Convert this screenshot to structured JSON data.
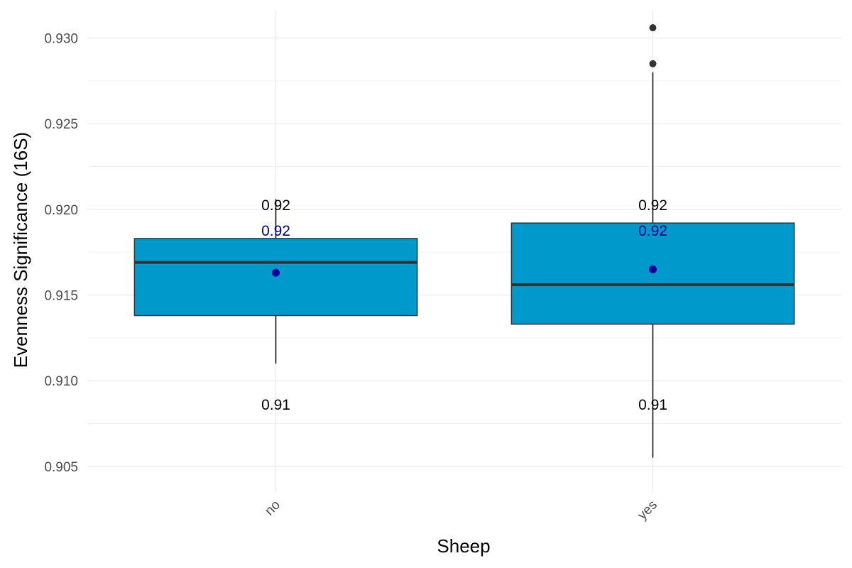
{
  "chart_data": {
    "type": "boxplot",
    "title": "",
    "xlabel": "Sheep",
    "ylabel": "Evenness Significance (16S)",
    "categories": [
      "no",
      "yes"
    ],
    "ylim": [
      0.9035,
      0.9316
    ],
    "y_ticks": [
      0.905,
      0.91,
      0.915,
      0.92,
      0.925,
      0.93
    ],
    "y_tick_labels": [
      "0.905",
      "0.910",
      "0.915",
      "0.920",
      "0.925",
      "0.930"
    ],
    "grid": true,
    "legend": "none",
    "boxes": [
      {
        "category": "no",
        "whisker_low": 0.911,
        "q1": 0.9138,
        "median": 0.9169,
        "q3": 0.9183,
        "whisker_high": 0.9206,
        "mean": 0.9163,
        "outliers": [],
        "label_top": "0.92",
        "label_mean": "0.92",
        "label_bottom": "0.91"
      },
      {
        "category": "yes",
        "whisker_low": 0.9055,
        "q1": 0.9133,
        "median": 0.9156,
        "q3": 0.9192,
        "whisker_high": 0.928,
        "mean": 0.9165,
        "outliers": [
          0.9285,
          0.9306
        ],
        "label_top": "0.92",
        "label_mean": "0.92",
        "label_bottom": "0.91"
      }
    ],
    "colors": {
      "box_fill": "#0099CC",
      "box_line": "#333333",
      "median_line": "#333333",
      "whisker": "#000000",
      "outlier": "#333333",
      "mean_point": "#00009C",
      "mean_label": "#00008B",
      "stat_label": "#000000",
      "grid_major": "#EBEBEB",
      "grid_minor": "#F2F2F2"
    }
  }
}
